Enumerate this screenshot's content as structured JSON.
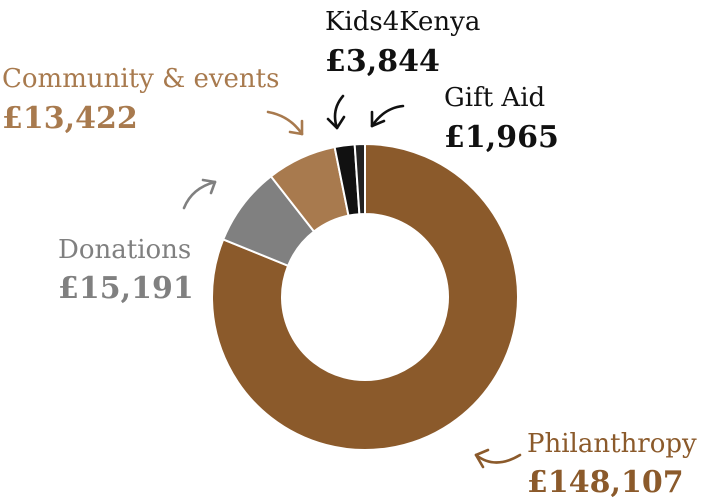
{
  "chart_data": {
    "type": "pie",
    "variant": "donut",
    "title": "",
    "slices": [
      {
        "name": "Philanthropy",
        "value_label": "£148,107",
        "value": 148107,
        "color": "#8B5A2B"
      },
      {
        "name": "Donations",
        "value_label": "£15,191",
        "value": 15191,
        "color": "#808080"
      },
      {
        "name": "Community & events",
        "value_label": "£13,422",
        "value": 13422,
        "color": "#A87A4E"
      },
      {
        "name": "Kids4Kenya",
        "value_label": "£3,844",
        "value": 3844,
        "color": "#111111"
      },
      {
        "name": "Gift Aid",
        "value_label": "£1,965",
        "value": 1965,
        "color": "#222222"
      }
    ],
    "label_colors": {
      "Philanthropy": "#8B5A2B",
      "Donations": "#808080",
      "Community & events": "#A87A4E",
      "Kids4Kenya": "#111111",
      "Gift Aid": "#111111"
    }
  }
}
